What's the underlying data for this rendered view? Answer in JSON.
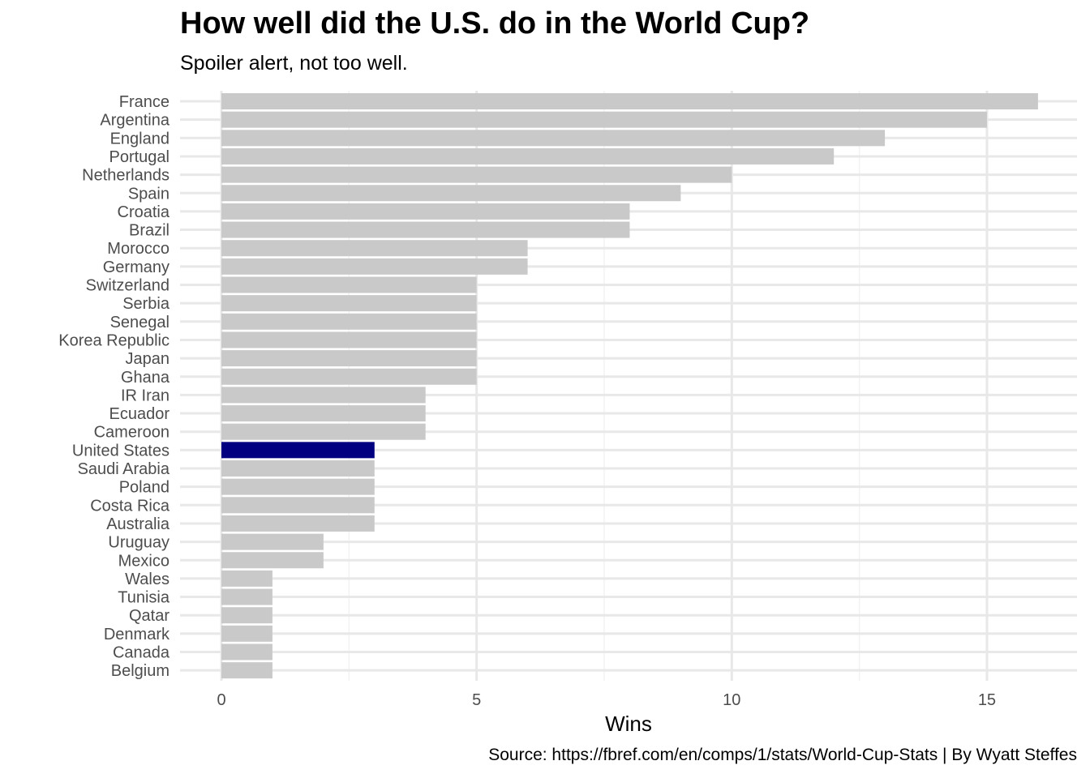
{
  "chart_data": {
    "type": "bar",
    "orientation": "horizontal",
    "title": "How well did the U.S. do in the World Cup?",
    "subtitle": "Spoiler alert, not too well.",
    "caption": "Source: https://fbref.com/en/comps/1/stats/World-Cup-Stats | By Wyatt Steffes",
    "xlabel": "Wins",
    "ylabel": "",
    "xlim": [
      0,
      16.8
    ],
    "xticks": [
      0,
      5,
      10,
      15
    ],
    "grid": true,
    "legend": "none",
    "highlight_category": "United States",
    "colors": {
      "default_bar": "#c9c9c9",
      "highlight_bar": "#000080",
      "grid_major": "#e8e8e8",
      "grid_minor": "#f2f2f2"
    },
    "categories": [
      "France",
      "Argentina",
      "England",
      "Portugal",
      "Netherlands",
      "Spain",
      "Croatia",
      "Brazil",
      "Morocco",
      "Germany",
      "Switzerland",
      "Serbia",
      "Senegal",
      "Korea Republic",
      "Japan",
      "Ghana",
      "IR Iran",
      "Ecuador",
      "Cameroon",
      "United States",
      "Saudi Arabia",
      "Poland",
      "Costa Rica",
      "Australia",
      "Uruguay",
      "Mexico",
      "Wales",
      "Tunisia",
      "Qatar",
      "Denmark",
      "Canada",
      "Belgium"
    ],
    "values": [
      16,
      15,
      13,
      12,
      10,
      9,
      8,
      8,
      6,
      6,
      5,
      5,
      5,
      5,
      5,
      5,
      4,
      4,
      4,
      3,
      3,
      3,
      3,
      3,
      2,
      2,
      1,
      1,
      1,
      1,
      1,
      1
    ]
  }
}
